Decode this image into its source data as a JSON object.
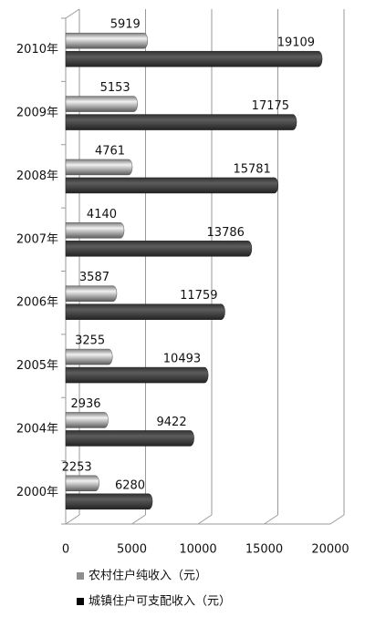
{
  "chart_data": {
    "type": "bar",
    "orientation": "horizontal",
    "categories": [
      "2000年",
      "2004年",
      "2005年",
      "2006年",
      "2007年",
      "2008年",
      "2009年",
      "2010年"
    ],
    "series": [
      {
        "name": "农村住户纯收入（元）",
        "color": "#a6a6a6",
        "values": [
          2253,
          2936,
          3255,
          3587,
          4140,
          4761,
          5153,
          5919
        ]
      },
      {
        "name": "城镇住户可支配收入（元）",
        "color": "#404040",
        "values": [
          6280,
          9422,
          10493,
          11759,
          13786,
          15781,
          17175,
          19109
        ]
      }
    ],
    "xlim": [
      0,
      20000
    ],
    "xticks": [
      0,
      5000,
      10000,
      15000,
      20000
    ],
    "grid": true,
    "legend": "bottom"
  }
}
